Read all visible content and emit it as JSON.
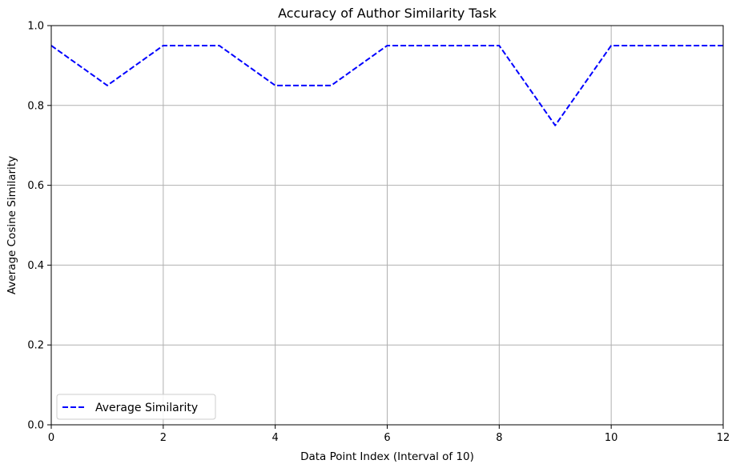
{
  "chart_data": {
    "type": "line",
    "title": "Accuracy of Author Similarity Task",
    "xlabel": "Data Point Index (Interval of 10)",
    "ylabel": "Average Cosine Similarity",
    "xlim": [
      0,
      12
    ],
    "ylim": [
      0,
      1.0
    ],
    "xticks": [
      0,
      2,
      4,
      6,
      8,
      10,
      12
    ],
    "yticks": [
      0.0,
      0.2,
      0.4,
      0.6,
      0.8,
      1.0
    ],
    "xtick_labels": [
      "0",
      "2",
      "4",
      "6",
      "8",
      "10",
      "12"
    ],
    "ytick_labels": [
      "0.0",
      "0.2",
      "0.4",
      "0.6",
      "0.8",
      "1.0"
    ],
    "grid": true,
    "legend_position": "lower-left",
    "series": [
      {
        "name": "Average Similarity",
        "color": "#0000ff",
        "line_style": "dashed",
        "x": [
          0,
          1,
          2,
          3,
          4,
          5,
          6,
          7,
          8,
          9,
          10,
          11,
          12
        ],
        "y": [
          0.95,
          0.85,
          0.95,
          0.95,
          0.85,
          0.85,
          0.95,
          0.95,
          0.95,
          0.75,
          0.95,
          0.95,
          0.95
        ]
      }
    ]
  }
}
